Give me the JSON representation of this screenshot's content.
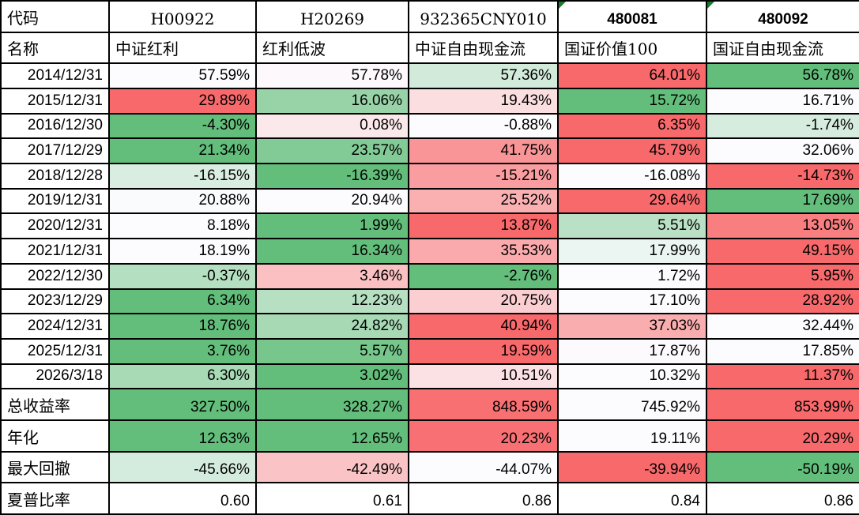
{
  "colors": {
    "scale_min_green": "#63BE7B",
    "scale_mid_white": "#FCFCFF",
    "scale_max_red": "#F8696B",
    "grid_border": "#000000",
    "text": "#000000",
    "background": "#FFFFFF",
    "flag_triangle_green": "#1A7A27"
  },
  "header": {
    "code_label": "代码",
    "name_label": "名称",
    "columns": [
      {
        "code": "H00922",
        "name": "中证红利",
        "code_style": "serif",
        "flag": false
      },
      {
        "code": "H20269",
        "name": "红利低波",
        "code_style": "serif",
        "flag": false
      },
      {
        "code": "932365CNY010",
        "name": "中证自由现金流",
        "code_style": "serif",
        "flag": false
      },
      {
        "code": "480081",
        "name": "国证价值100",
        "code_style": "bold-sans",
        "flag": true
      },
      {
        "code": "480092",
        "name": "国证自由现金流",
        "code_style": "bold-sans",
        "flag": true
      }
    ]
  },
  "rows": [
    {
      "label": "2014/12/31",
      "label_style": "sans",
      "values": [
        57.59,
        57.78,
        57.36,
        64.01,
        56.78
      ],
      "suffix": "%",
      "color_scale": true
    },
    {
      "label": "2015/12/31",
      "label_style": "sans",
      "values": [
        29.89,
        16.06,
        19.43,
        15.72,
        16.71
      ],
      "suffix": "%",
      "color_scale": true
    },
    {
      "label": "2016/12/30",
      "label_style": "sans",
      "values": [
        -4.3,
        0.08,
        -0.88,
        6.35,
        -1.74
      ],
      "suffix": "%",
      "color_scale": true
    },
    {
      "label": "2017/12/29",
      "label_style": "sans",
      "values": [
        21.34,
        23.57,
        41.75,
        45.79,
        32.06
      ],
      "suffix": "%",
      "color_scale": true
    },
    {
      "label": "2018/12/28",
      "label_style": "sans",
      "values": [
        -16.15,
        -16.39,
        -15.21,
        -16.08,
        -14.73
      ],
      "suffix": "%",
      "color_scale": true
    },
    {
      "label": "2019/12/31",
      "label_style": "sans",
      "values": [
        20.88,
        20.94,
        25.52,
        29.64,
        17.69
      ],
      "suffix": "%",
      "color_scale": true
    },
    {
      "label": "2020/12/31",
      "label_style": "sans",
      "values": [
        8.18,
        1.99,
        13.87,
        5.51,
        13.05
      ],
      "suffix": "%",
      "color_scale": true
    },
    {
      "label": "2021/12/31",
      "label_style": "sans",
      "values": [
        18.19,
        16.34,
        35.53,
        17.99,
        49.15
      ],
      "suffix": "%",
      "color_scale": true
    },
    {
      "label": "2022/12/30",
      "label_style": "sans",
      "values": [
        -0.37,
        3.46,
        -2.76,
        1.72,
        5.95
      ],
      "suffix": "%",
      "color_scale": true
    },
    {
      "label": "2023/12/29",
      "label_style": "sans",
      "values": [
        6.34,
        12.23,
        20.75,
        17.1,
        28.92
      ],
      "suffix": "%",
      "color_scale": true
    },
    {
      "label": "2024/12/31",
      "label_style": "sans",
      "values": [
        18.76,
        24.82,
        40.94,
        37.03,
        32.44
      ],
      "suffix": "%",
      "color_scale": true
    },
    {
      "label": "2025/12/31",
      "label_style": "sans",
      "values": [
        3.76,
        5.57,
        19.59,
        17.87,
        17.85
      ],
      "suffix": "%",
      "color_scale": true
    },
    {
      "label": "2026/3/18",
      "label_style": "sans",
      "values": [
        6.3,
        3.02,
        10.51,
        10.32,
        11.37
      ],
      "suffix": "%",
      "color_scale": true
    },
    {
      "label": "总收益率",
      "label_style": "serif",
      "values": [
        327.5,
        328.27,
        848.59,
        745.92,
        853.99
      ],
      "suffix": "%",
      "color_scale": true
    },
    {
      "label": "年化",
      "label_style": "serif",
      "values": [
        12.63,
        12.65,
        20.23,
        19.11,
        20.29
      ],
      "suffix": "%",
      "color_scale": true
    },
    {
      "label": "最大回撤",
      "label_style": "serif",
      "values": [
        -45.66,
        -42.49,
        -44.07,
        -39.94,
        -50.19
      ],
      "suffix": "%",
      "color_scale": true
    },
    {
      "label": "夏普比率",
      "label_style": "serif",
      "values": [
        0.6,
        0.61,
        0.86,
        0.84,
        0.86
      ],
      "suffix": "",
      "color_scale": false
    }
  ],
  "decimals": 2
}
